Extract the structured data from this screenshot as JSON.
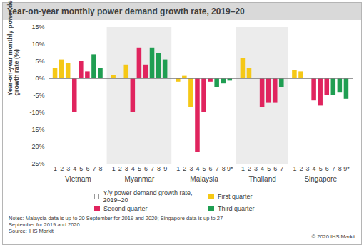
{
  "chart_data": {
    "type": "bar",
    "title": "Year-on-year monthly power demand growth rate, 2019–20",
    "ylabel": "Year-on-year monthly power demand growth rate (%)",
    "ylim": [
      -25,
      15
    ],
    "yticks": [
      {
        "value": -25,
        "label": "-25%"
      },
      {
        "value": -20,
        "label": "-20%"
      },
      {
        "value": -15,
        "label": "-15%"
      },
      {
        "value": -10,
        "label": "-10%"
      },
      {
        "value": -5,
        "label": "-5%"
      },
      {
        "value": 0,
        "label": "0%"
      },
      {
        "value": 5,
        "label": "5%"
      },
      {
        "value": 10,
        "label": "10%"
      },
      {
        "value": 15,
        "label": "15%"
      }
    ],
    "grid": false,
    "series": [
      {
        "name": "Y/y power demand growth rate, 2019–20",
        "color": "#ffffff"
      },
      {
        "name": "First quarter",
        "color": "#f5c816"
      },
      {
        "name": "Second quarter",
        "color": "#e0245e"
      },
      {
        "name": "Third quarter",
        "color": "#1f9e52"
      }
    ],
    "groups": [
      {
        "name": "Vietnam",
        "months": [
          "1",
          "2",
          "3",
          "4",
          "5",
          "6",
          "7",
          "8"
        ],
        "quarters": [
          "First quarter",
          "First quarter",
          "First quarter",
          "Second quarter",
          "Second quarter",
          "Second quarter",
          "Third quarter",
          "Third quarter"
        ],
        "values": [
          3,
          5.5,
          4.5,
          -10,
          5,
          2,
          7,
          3
        ]
      },
      {
        "name": "Myanmar",
        "months": [
          "1",
          "2",
          "3",
          "4",
          "5",
          "6",
          "7",
          "8",
          "9"
        ],
        "quarters": [
          "First quarter",
          "First quarter",
          "First quarter",
          "Second quarter",
          "Second quarter",
          "Second quarter",
          "Third quarter",
          "Third quarter",
          "Third quarter"
        ],
        "values": [
          1,
          0,
          4,
          -10,
          9,
          4,
          9,
          7.5,
          5.5
        ]
      },
      {
        "name": "Malaysia",
        "months": [
          "1",
          "2",
          "3",
          "4",
          "5",
          "6",
          "7",
          "8",
          "9*"
        ],
        "quarters": [
          "First quarter",
          "First quarter",
          "First quarter",
          "Second quarter",
          "Second quarter",
          "Second quarter",
          "Third quarter",
          "Third quarter",
          "Third quarter"
        ],
        "values": [
          -1,
          0.7,
          -8.5,
          -21.5,
          -10,
          -1,
          -2.5,
          -1.5,
          -0.7
        ]
      },
      {
        "name": "Thailand",
        "months": [
          "1",
          "2",
          "3",
          "4",
          "5",
          "6",
          "7"
        ],
        "quarters": [
          "First quarter",
          "First quarter",
          "First quarter",
          "Second quarter",
          "Second quarter",
          "Second quarter",
          "Third quarter"
        ],
        "values": [
          6,
          3,
          0,
          -8.5,
          -7,
          -7,
          -2.5
        ]
      },
      {
        "name": "Singapore",
        "months": [
          "1",
          "2",
          "3",
          "4",
          "5",
          "6",
          "7",
          "8",
          "9*"
        ],
        "quarters": [
          "First quarter",
          "First quarter",
          "First quarter",
          "Second quarter",
          "Second quarter",
          "Second quarter",
          "Third quarter",
          "Third quarter",
          "Third quarter"
        ],
        "values": [
          2.5,
          2,
          0,
          -6.5,
          -8,
          -5,
          -5,
          -4,
          -6
        ]
      }
    ],
    "notes": "Notes: Malaysia data is up to 20 September for 2019 and 2020; Singapore data is up to 27 September for 2019 and 2020.",
    "source": "Source: IHS Markit",
    "copyright": "© 2020 IHS Markit"
  }
}
